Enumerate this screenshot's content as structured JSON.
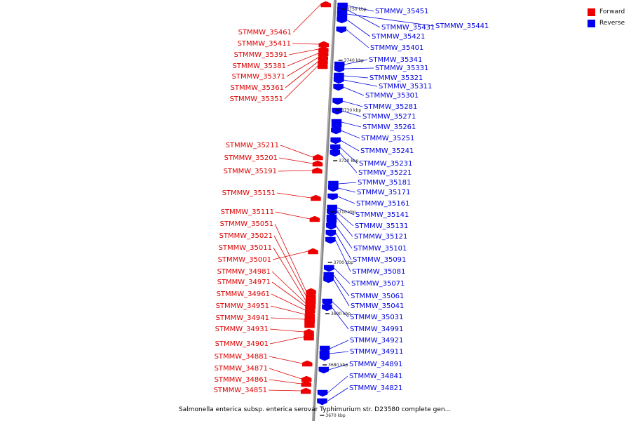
{
  "legend": [
    {
      "label": "Forward",
      "color": "#ee0000"
    },
    {
      "label": "Reverse",
      "color": "#0000ee"
    }
  ],
  "caption": "Salmonella enterica subsp. enterica serovar Typhimurium str. D23580 complete gen...",
  "ticks": [
    "3750 kbp",
    "3740 kbp",
    "3730 kbp",
    "3720 kbp",
    "3710 kbp",
    "3700 kbp",
    "3690 kbp",
    "3680 kbp",
    "3670 kbp"
  ],
  "forward_genes": [
    "STMMW_35461",
    "STMMW_35411",
    "STMMW_35391",
    "STMMW_35381",
    "STMMW_35371",
    "STMMW_35361",
    "STMMW_35351",
    "STMMW_35211",
    "STMMW_35201",
    "STMMW_35191",
    "STMMW_35151",
    "STMMW_35111",
    "STMMW_35051",
    "STMMW_35021",
    "STMMW_35011",
    "STMMW_35001",
    "STMMW_34981",
    "STMMW_34971",
    "STMMW_34961",
    "STMMW_34951",
    "STMMW_34941",
    "STMMW_34931",
    "STMMW_34901",
    "STMMW_34881",
    "STMMW_34871",
    "STMMW_34861",
    "STMMW_34851"
  ],
  "reverse_genes": [
    "STMMW_35451",
    "STMMW_35431",
    "STMMW_35441",
    "STMMW_35421",
    "STMMW_35401",
    "STMMW_35341",
    "STMMW_35331",
    "STMMW_35321",
    "STMMW_35311",
    "STMMW_35301",
    "STMMW_35281",
    "STMMW_35271",
    "STMMW_35261",
    "STMMW_35251",
    "STMMW_35241",
    "STMMW_35231",
    "STMMW_35221",
    "STMMW_35181",
    "STMMW_35171",
    "STMMW_35161",
    "STMMW_35141",
    "STMMW_35131",
    "STMMW_35121",
    "STMMW_35101",
    "STMMW_35091",
    "STMMW_35081",
    "STMMW_35071",
    "STMMW_35061",
    "STMMW_35041",
    "STMMW_35031",
    "STMMW_34991",
    "STMMW_34921",
    "STMMW_34911",
    "STMMW_34891",
    "STMMW_34841",
    "STMMW_34821"
  ]
}
